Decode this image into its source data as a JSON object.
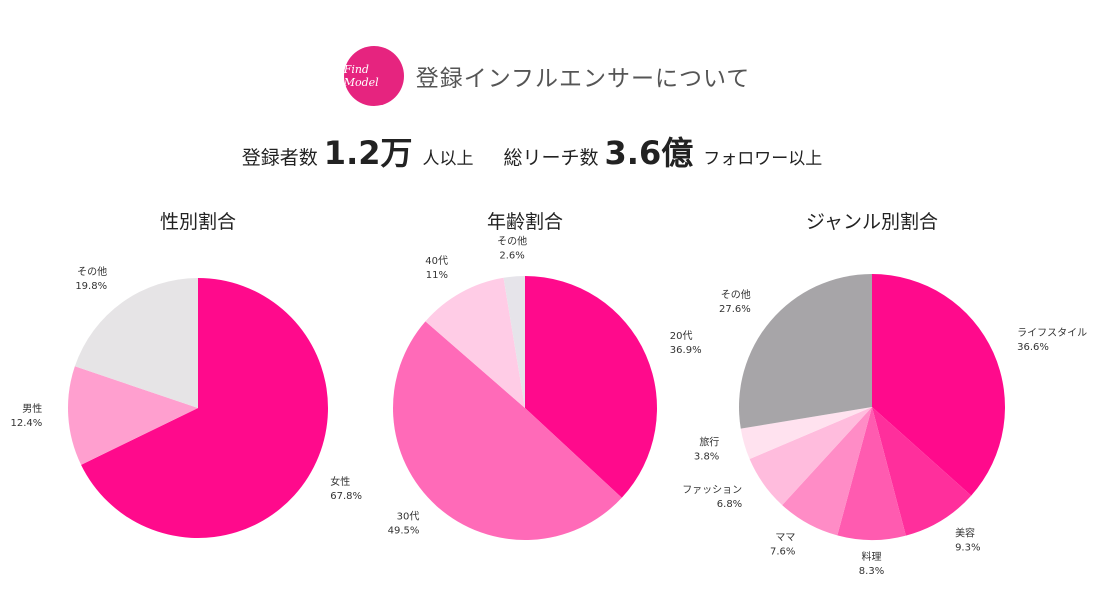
{
  "header": {
    "logo": "Find Model",
    "title": "登録インフルエンサーについて"
  },
  "stats": [
    {
      "label": "登録者数",
      "value": "1.2万",
      "suffix": "人以上"
    },
    {
      "label": "総リーチ数",
      "value": "3.6億",
      "suffix": "フォロワー以上"
    }
  ],
  "chart_data": [
    {
      "type": "pie",
      "title": "性別割合",
      "categories": [
        "女性",
        "男性",
        "その他"
      ],
      "values": [
        67.8,
        12.4,
        19.8
      ],
      "value_labels": [
        "67.8%",
        "12.4%",
        "19.8%"
      ],
      "colors": [
        "#ff0a8c",
        "#ff9fcf",
        "#e6e4e6"
      ]
    },
    {
      "type": "pie",
      "title": "年齢割合",
      "categories": [
        "20代",
        "30代",
        "40代",
        "その他"
      ],
      "values": [
        36.9,
        49.5,
        11,
        2.6
      ],
      "value_labels": [
        "36.9%",
        "49.5%",
        "11%",
        "2.6%"
      ],
      "colors": [
        "#ff0a8c",
        "#ff6ab8",
        "#ffcce6",
        "#e6e4ea"
      ]
    },
    {
      "type": "pie",
      "title": "ジャンル別割合",
      "categories": [
        "ライフスタイル",
        "美容",
        "料理",
        "ママ",
        "ファッション",
        "旅行",
        "その他"
      ],
      "values": [
        36.6,
        9.3,
        8.3,
        7.6,
        6.8,
        3.8,
        27.6
      ],
      "value_labels": [
        "36.6%",
        "9.3%",
        "8.3%",
        "7.6%",
        "6.8%",
        "3.8%",
        "27.6%"
      ],
      "colors": [
        "#ff0a8c",
        "#ff2f9c",
        "#ff5bb0",
        "#ff8cc6",
        "#ffbcdd",
        "#ffe2ef",
        "#a7a5a8"
      ]
    }
  ]
}
